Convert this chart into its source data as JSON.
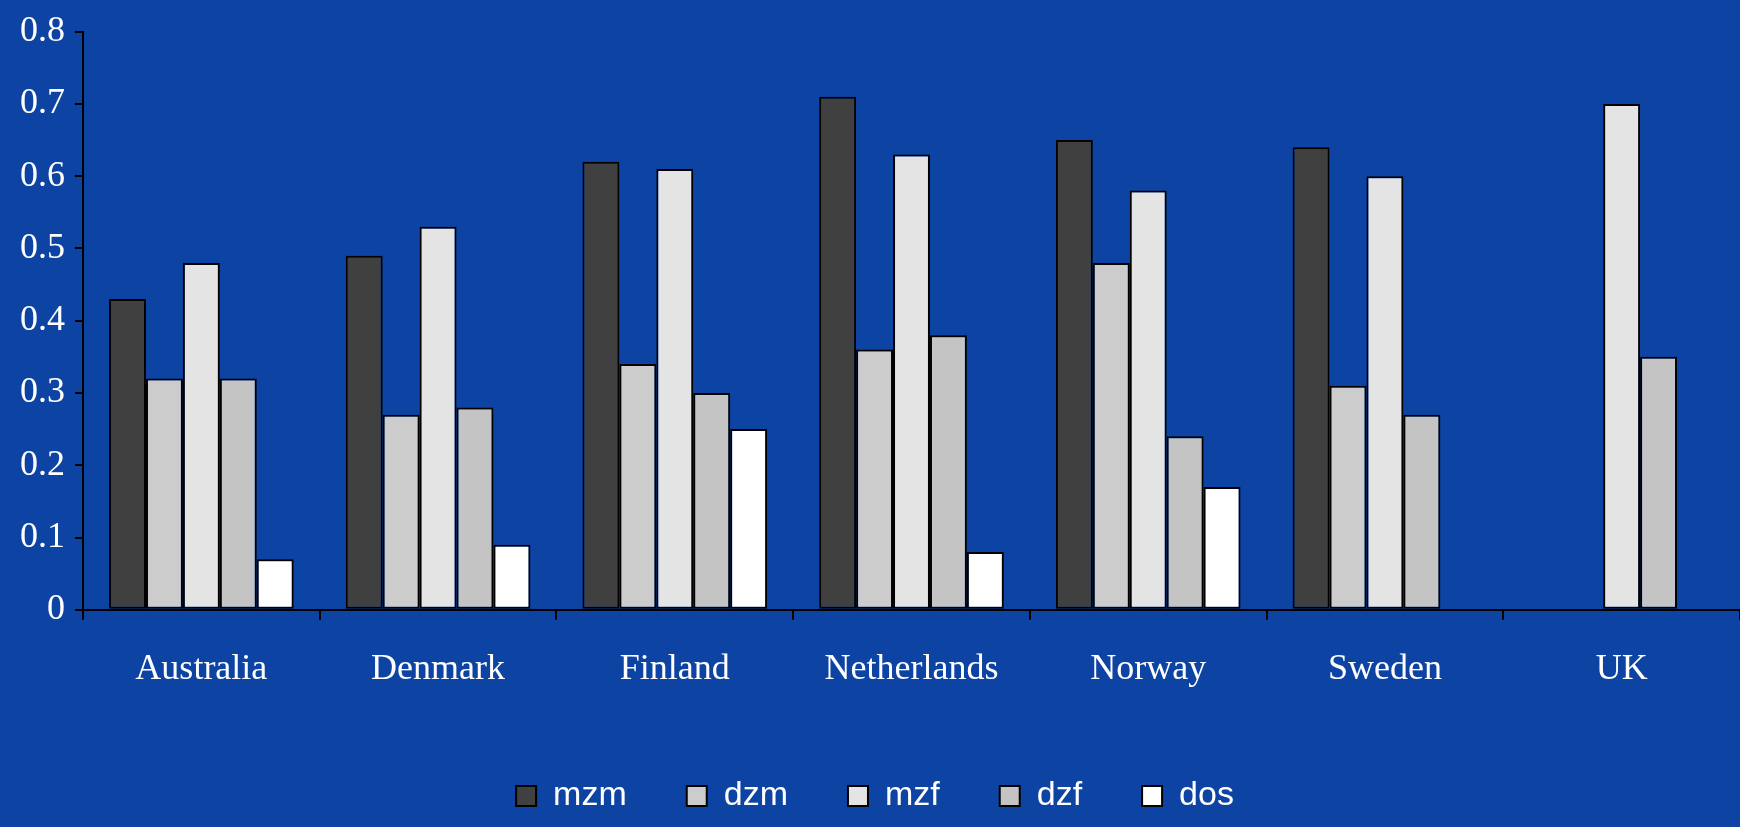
{
  "chart_data": {
    "type": "bar",
    "categories": [
      "Australia",
      "Denmark",
      "Finland",
      "Netherlands",
      "Norway",
      "Sweden",
      "UK"
    ],
    "series": [
      {
        "name": "mzm",
        "color": "#404040",
        "values": [
          0.43,
          0.49,
          0.62,
          0.71,
          0.65,
          0.64,
          null
        ]
      },
      {
        "name": "dzm",
        "color": "#cccccc",
        "values": [
          0.32,
          0.27,
          0.34,
          0.36,
          0.48,
          0.31,
          null
        ]
      },
      {
        "name": "mzf",
        "color": "#e4e4e4",
        "values": [
          0.48,
          0.53,
          0.61,
          0.63,
          0.58,
          0.6,
          0.7
        ]
      },
      {
        "name": "dzf",
        "color": "#c4c4c4",
        "values": [
          0.32,
          0.28,
          0.3,
          0.38,
          0.24,
          0.27,
          0.35
        ]
      },
      {
        "name": "dos",
        "color": "#ffffff",
        "values": [
          0.07,
          0.09,
          0.25,
          0.08,
          0.17,
          null,
          null
        ]
      }
    ],
    "ylim": [
      0,
      0.8
    ],
    "yticks": [
      0,
      0.1,
      0.2,
      0.3,
      0.4,
      0.5,
      0.6,
      0.7,
      0.8
    ],
    "grid": false,
    "legend": "bottom"
  }
}
